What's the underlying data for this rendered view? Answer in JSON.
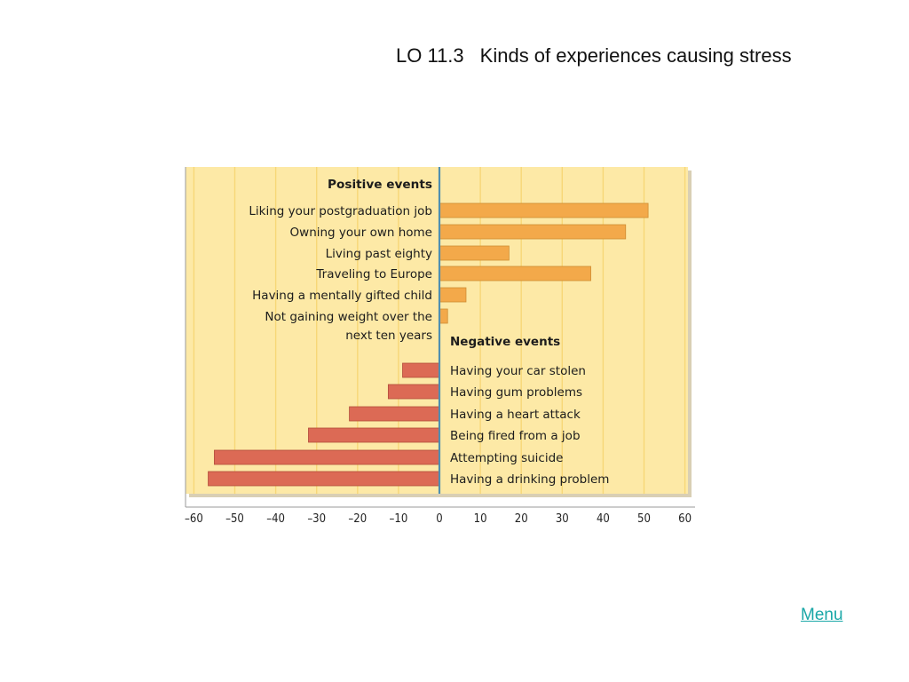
{
  "slide": {
    "code": "LO 11.3",
    "title": "Kinds of experiences causing stress",
    "menu_label": "Menu"
  },
  "colors": {
    "panel_background": "#fde9a6",
    "positive_bar": "#f3a94a",
    "negative_bar": "#dc6a55",
    "zero_line": "#4f8fb0",
    "grid": "#f7d777",
    "link": "#1aa7a7"
  },
  "chart_data": {
    "type": "bar",
    "orientation": "horizontal",
    "xlim": [
      -60,
      60
    ],
    "x_ticks": [
      -60,
      -50,
      -40,
      -30,
      -20,
      -10,
      0,
      10,
      20,
      30,
      40,
      50,
      60
    ],
    "x_tick_labels": [
      "–60",
      "–50",
      "–40",
      "–30",
      "–20",
      "–10",
      "0",
      "10",
      "20",
      "30",
      "40",
      "50",
      "60"
    ],
    "grid": true,
    "groups": [
      {
        "label": "Positive events",
        "label_side": "left",
        "items": [
          {
            "label": "Liking your postgraduation job",
            "value": 51
          },
          {
            "label": "Owning your own home",
            "value": 45.5
          },
          {
            "label": "Living past eighty",
            "value": 17
          },
          {
            "label": "Traveling to Europe",
            "value": 37
          },
          {
            "label": "Having a mentally gifted child",
            "value": 6.5
          },
          {
            "label": "Not gaining weight over the next ten years",
            "label_lines": [
              "Not gaining weight over the",
              "next ten years"
            ],
            "value": 2
          }
        ]
      },
      {
        "label": "Negative events",
        "label_side": "right",
        "items": [
          {
            "label": "Having your car stolen",
            "value": -9
          },
          {
            "label": "Having gum problems",
            "value": -12.5
          },
          {
            "label": "Having a heart attack",
            "value": -22
          },
          {
            "label": "Being fired from a job",
            "value": -32
          },
          {
            "label": "Attempting suicide",
            "value": -55
          },
          {
            "label": "Having a drinking problem",
            "value": -56.5
          }
        ]
      }
    ]
  }
}
